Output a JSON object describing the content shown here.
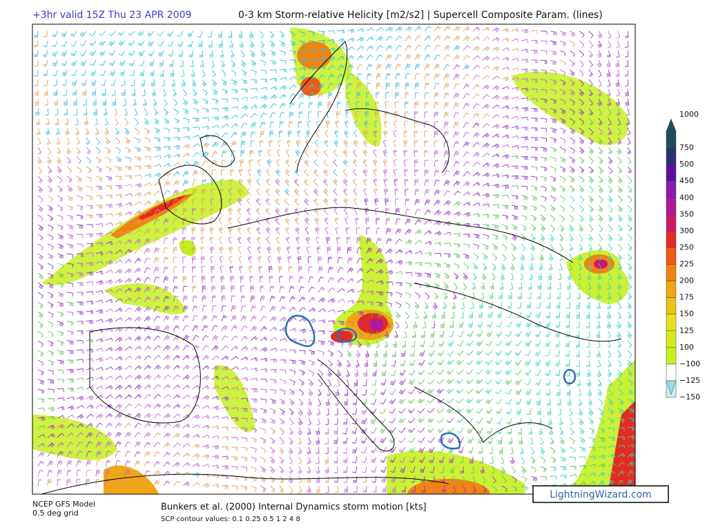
{
  "header": {
    "left": "+3hr valid 15Z Thu 23 APR 2009",
    "right": "0-3 km Storm-relative Helicity [m2/s2] | Supercell Composite Param. (lines)"
  },
  "colorbar": {
    "levels": [
      {
        "label": "1000",
        "color": "#1e4d5c"
      },
      {
        "label": "750",
        "color": "#2b2f6e"
      },
      {
        "label": "500",
        "color": "#5b0f9c"
      },
      {
        "label": "450",
        "color": "#8a1ab2"
      },
      {
        "label": "400",
        "color": "#b0189a"
      },
      {
        "label": "350",
        "color": "#d01868"
      },
      {
        "label": "300",
        "color": "#e42a22"
      },
      {
        "label": "250",
        "color": "#f05a12"
      },
      {
        "label": "225",
        "color": "#f08412"
      },
      {
        "label": "200",
        "color": "#f0a614"
      },
      {
        "label": "175",
        "color": "#e8c414"
      },
      {
        "label": "150",
        "color": "#e8e01e"
      },
      {
        "label": "125",
        "color": "#d8ea18"
      },
      {
        "label": "100",
        "color": "#c4f020"
      },
      {
        "label": "−100",
        "color": "#ffffff"
      },
      {
        "label": "−125",
        "color": "#c8eef2"
      },
      {
        "label": "−150",
        "color": "#9cdbe6"
      }
    ]
  },
  "footer": {
    "model": "NCEP GFS Model",
    "grid": "0.5 deg grid",
    "motion": "Bunkers et al. (2000) Internal Dynamics storm motion [kts]",
    "contours": "SCP contour values: 0.1 0.25 0.5 1 2 4 8"
  },
  "watermark": "LightningWizard.com"
}
